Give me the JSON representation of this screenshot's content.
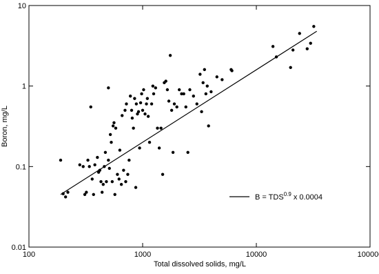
{
  "chart_data": {
    "type": "scatter",
    "xlabel": "Total dissolved solids, mg/L",
    "ylabel": "Boron, mg/L",
    "xscale": "log",
    "yscale": "log",
    "xlim": [
      100,
      100000
    ],
    "ylim": [
      0.01,
      10
    ],
    "xticks": [
      100,
      1000,
      10000,
      100000
    ],
    "yticks": [
      0.01,
      0.1,
      1,
      10
    ],
    "series": [
      {
        "color": "#000000",
        "x": [
          190,
          200,
          210,
          220,
          280,
          300,
          310,
          320,
          330,
          340,
          350,
          360,
          370,
          380,
          400,
          410,
          420,
          430,
          440,
          450,
          460,
          470,
          480,
          500,
          500,
          510,
          520,
          530,
          540,
          550,
          560,
          570,
          580,
          600,
          620,
          630,
          650,
          660,
          680,
          700,
          710,
          720,
          740,
          760,
          780,
          800,
          810,
          830,
          850,
          870,
          880,
          900,
          920,
          940,
          960,
          980,
          1000,
          1020,
          1050,
          1080,
          1100,
          1120,
          1150,
          1200,
          1230,
          1250,
          1300,
          1350,
          1400,
          1450,
          1500,
          1550,
          1600,
          1650,
          1700,
          1750,
          1800,
          1850,
          1900,
          2000,
          2100,
          2200,
          2300,
          2400,
          2500,
          2600,
          2800,
          3000,
          3200,
          3300,
          3400,
          3500,
          3600,
          3700,
          3800,
          4000,
          4500,
          5000,
          6000,
          6100,
          14000,
          15000,
          20000,
          21000,
          24000,
          28000,
          30000,
          32000
        ],
        "values": [
          0.12,
          0.046,
          0.042,
          0.048,
          0.105,
          0.1,
          0.045,
          0.048,
          0.12,
          0.1,
          0.55,
          0.07,
          0.045,
          0.105,
          0.13,
          0.085,
          0.09,
          0.065,
          0.048,
          0.06,
          0.1,
          0.15,
          0.065,
          0.12,
          0.95,
          0.095,
          0.25,
          0.2,
          0.065,
          0.32,
          0.35,
          0.045,
          0.3,
          0.08,
          0.07,
          0.16,
          0.06,
          0.43,
          0.09,
          0.5,
          0.065,
          0.6,
          0.08,
          0.12,
          0.75,
          0.5,
          0.4,
          0.3,
          0.7,
          0.055,
          0.6,
          0.45,
          0.48,
          0.17,
          0.62,
          0.8,
          0.5,
          0.9,
          0.45,
          0.6,
          0.7,
          0.42,
          0.2,
          0.6,
          1.0,
          0.8,
          0.95,
          0.3,
          0.17,
          0.3,
          0.08,
          1.1,
          1.15,
          0.9,
          0.65,
          2.4,
          0.5,
          0.15,
          0.6,
          0.55,
          0.9,
          0.8,
          0.8,
          0.55,
          0.15,
          0.9,
          0.75,
          0.6,
          1.4,
          0.48,
          1.1,
          1.6,
          0.8,
          1.0,
          0.32,
          0.85,
          1.3,
          1.2,
          1.6,
          1.55,
          3.1,
          2.3,
          1.7,
          2.8,
          4.5,
          2.9,
          3.4,
          5.5
        ]
      }
    ],
    "fit": {
      "x": [
        190,
        34000
      ],
      "values": [
        0.045,
        4.79
      ],
      "label": {
        "text": "B = TDS",
        "exponent": "0.9",
        "factor": "x 0.0004"
      }
    }
  }
}
